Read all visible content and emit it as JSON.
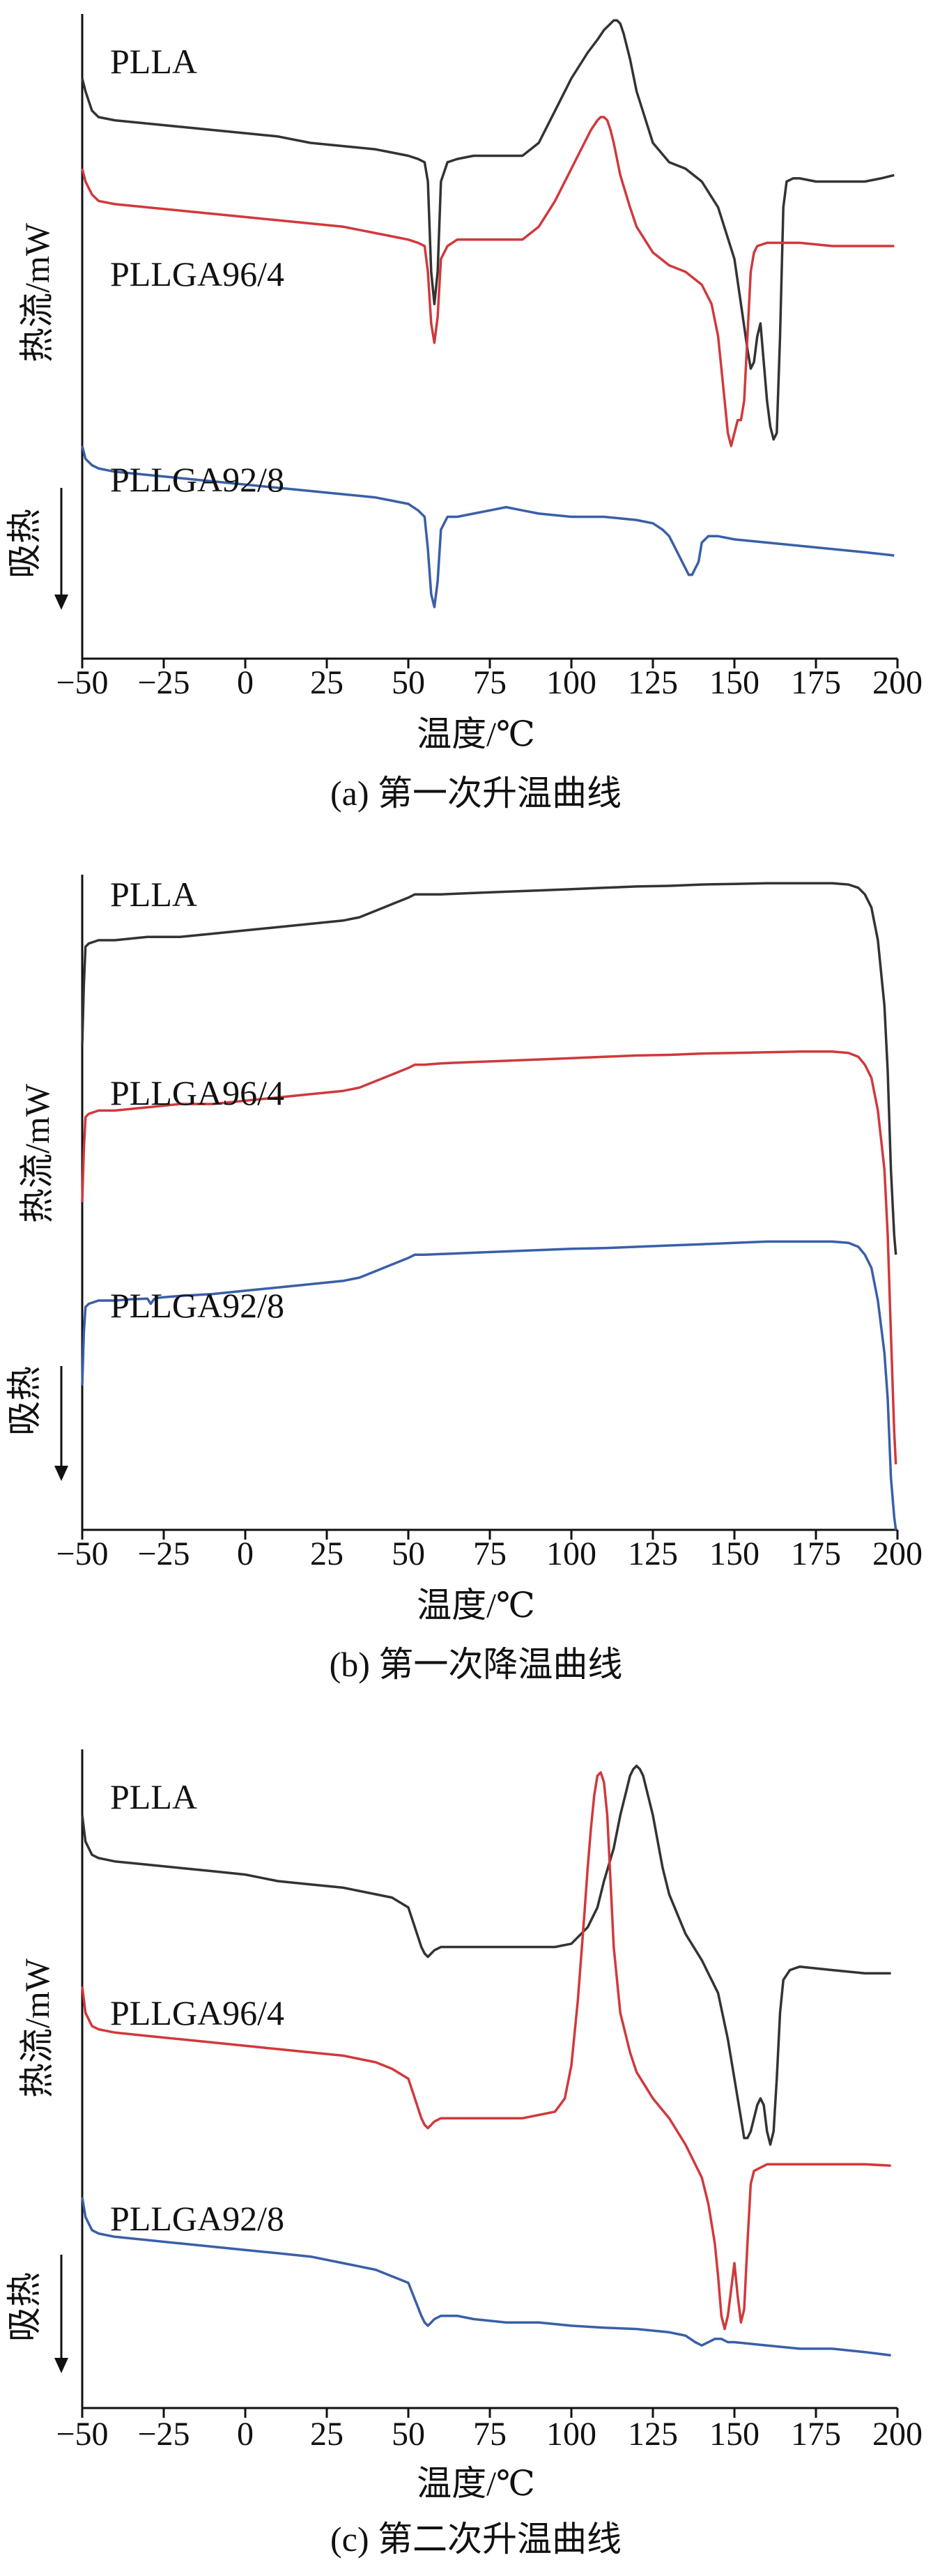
{
  "chart_data": [
    {
      "type": "line",
      "caption": "(a) 第一次升温曲线",
      "xlabel": "温度/℃",
      "ylabel": "热流/mW",
      "endo_label": "吸热",
      "xlim": [
        -50,
        200
      ],
      "xticks": [
        -50,
        -25,
        0,
        25,
        50,
        75,
        100,
        125,
        150,
        175,
        200
      ],
      "series": [
        {
          "name": "PLLA",
          "color": "#333333",
          "x": [
            -50,
            -49,
            -47,
            -45,
            -40,
            -30,
            -20,
            -10,
            0,
            10,
            20,
            30,
            40,
            45,
            50,
            53,
            55,
            56,
            57,
            58,
            59,
            60,
            62,
            65,
            70,
            75,
            80,
            85,
            90,
            95,
            100,
            105,
            108,
            110,
            112,
            113,
            114,
            115,
            116,
            118,
            120,
            125,
            130,
            135,
            140,
            145,
            150,
            152,
            154,
            155,
            156,
            157,
            158,
            159,
            160,
            161,
            162,
            163,
            164,
            165,
            166,
            168,
            170,
            175,
            180,
            185,
            190,
            195,
            199
          ],
          "y": [
            0.9,
            0.88,
            0.85,
            0.84,
            0.835,
            0.83,
            0.825,
            0.82,
            0.815,
            0.81,
            0.8,
            0.795,
            0.79,
            0.785,
            0.78,
            0.775,
            0.77,
            0.74,
            0.6,
            0.55,
            0.6,
            0.74,
            0.77,
            0.775,
            0.78,
            0.78,
            0.78,
            0.78,
            0.8,
            0.85,
            0.9,
            0.94,
            0.96,
            0.975,
            0.985,
            0.99,
            0.99,
            0.985,
            0.97,
            0.93,
            0.88,
            0.8,
            0.77,
            0.76,
            0.74,
            0.7,
            0.62,
            0.55,
            0.48,
            0.45,
            0.46,
            0.5,
            0.52,
            0.46,
            0.4,
            0.36,
            0.34,
            0.35,
            0.5,
            0.7,
            0.74,
            0.745,
            0.745,
            0.74,
            0.74,
            0.74,
            0.74,
            0.745,
            0.75
          ]
        },
        {
          "name": "PLLGA96/4",
          "color": "#d0393c",
          "x": [
            -50,
            -49,
            -47,
            -45,
            -40,
            -30,
            -20,
            -10,
            0,
            10,
            20,
            30,
            40,
            45,
            50,
            53,
            55,
            56,
            57,
            58,
            59,
            60,
            62,
            65,
            70,
            75,
            80,
            85,
            90,
            95,
            100,
            104,
            106,
            108,
            109,
            110,
            111,
            112,
            113,
            115,
            118,
            120,
            125,
            130,
            135,
            140,
            143,
            145,
            146,
            147,
            148,
            149,
            150,
            151,
            152,
            153,
            154,
            155,
            156,
            157,
            160,
            165,
            170,
            180,
            190,
            199
          ],
          "y": [
            0.76,
            0.74,
            0.72,
            0.71,
            0.705,
            0.7,
            0.695,
            0.69,
            0.685,
            0.68,
            0.675,
            0.67,
            0.66,
            0.655,
            0.65,
            0.645,
            0.64,
            0.6,
            0.52,
            0.49,
            0.53,
            0.62,
            0.64,
            0.65,
            0.65,
            0.65,
            0.65,
            0.65,
            0.67,
            0.71,
            0.76,
            0.8,
            0.82,
            0.835,
            0.84,
            0.84,
            0.835,
            0.82,
            0.8,
            0.75,
            0.7,
            0.67,
            0.63,
            0.61,
            0.6,
            0.58,
            0.55,
            0.5,
            0.45,
            0.4,
            0.35,
            0.33,
            0.35,
            0.37,
            0.37,
            0.4,
            0.5,
            0.6,
            0.63,
            0.64,
            0.645,
            0.645,
            0.645,
            0.64,
            0.64,
            0.64
          ]
        },
        {
          "name": "PLLGA92/8",
          "color": "#3a5fa8",
          "x": [
            -50,
            -49,
            -47,
            -45,
            -40,
            -30,
            -20,
            -10,
            0,
            10,
            20,
            30,
            40,
            45,
            50,
            53,
            55,
            56,
            57,
            58,
            59,
            60,
            62,
            65,
            70,
            75,
            80,
            85,
            90,
            100,
            110,
            120,
            125,
            128,
            130,
            132,
            134,
            135,
            136,
            137,
            138,
            139,
            140,
            142,
            145,
            150,
            160,
            170,
            180,
            190,
            199
          ],
          "y": [
            0.33,
            0.31,
            0.3,
            0.295,
            0.29,
            0.285,
            0.28,
            0.275,
            0.27,
            0.265,
            0.26,
            0.255,
            0.25,
            0.245,
            0.24,
            0.23,
            0.22,
            0.17,
            0.1,
            0.08,
            0.12,
            0.2,
            0.22,
            0.22,
            0.225,
            0.23,
            0.235,
            0.23,
            0.225,
            0.22,
            0.22,
            0.215,
            0.21,
            0.2,
            0.19,
            0.17,
            0.15,
            0.14,
            0.13,
            0.13,
            0.14,
            0.15,
            0.18,
            0.19,
            0.19,
            0.185,
            0.18,
            0.175,
            0.17,
            0.165,
            0.16
          ]
        }
      ]
    },
    {
      "type": "line",
      "caption": "(b) 第一次降温曲线",
      "xlabel": "温度/℃",
      "ylabel": "热流/mW",
      "endo_label": "吸热",
      "xlim": [
        -50,
        200
      ],
      "xticks": [
        -50,
        -25,
        0,
        25,
        50,
        75,
        100,
        125,
        150,
        175,
        200
      ],
      "series": [
        {
          "name": "PLLA",
          "color": "#333333",
          "x": [
            -50,
            -49.5,
            -49,
            -48,
            -45,
            -40,
            -30,
            -20,
            -10,
            0,
            10,
            20,
            30,
            35,
            40,
            45,
            50,
            52,
            55,
            60,
            70,
            80,
            90,
            100,
            110,
            120,
            130,
            140,
            150,
            160,
            170,
            180,
            185,
            188,
            190,
            192,
            194,
            196,
            197,
            198,
            199,
            199.5
          ],
          "y": [
            0.74,
            0.83,
            0.89,
            0.895,
            0.9,
            0.9,
            0.905,
            0.905,
            0.91,
            0.915,
            0.92,
            0.925,
            0.93,
            0.935,
            0.945,
            0.955,
            0.965,
            0.97,
            0.97,
            0.97,
            0.972,
            0.974,
            0.976,
            0.978,
            0.98,
            0.982,
            0.983,
            0.985,
            0.986,
            0.987,
            0.987,
            0.987,
            0.985,
            0.98,
            0.97,
            0.95,
            0.9,
            0.8,
            0.7,
            0.55,
            0.45,
            0.42
          ]
        },
        {
          "name": "PLLGA96/4",
          "color": "#d0393c",
          "x": [
            -50,
            -49.5,
            -49,
            -48,
            -45,
            -40,
            -30,
            -20,
            -10,
            0,
            10,
            20,
            30,
            35,
            40,
            45,
            50,
            52,
            55,
            60,
            70,
            80,
            90,
            100,
            110,
            120,
            130,
            140,
            150,
            160,
            170,
            180,
            185,
            188,
            190,
            192,
            194,
            196,
            197,
            198,
            199,
            199.5
          ],
          "y": [
            0.5,
            0.58,
            0.63,
            0.635,
            0.64,
            0.64,
            0.645,
            0.65,
            0.65,
            0.655,
            0.66,
            0.665,
            0.67,
            0.675,
            0.685,
            0.695,
            0.705,
            0.71,
            0.71,
            0.712,
            0.714,
            0.716,
            0.718,
            0.72,
            0.722,
            0.724,
            0.725,
            0.727,
            0.728,
            0.729,
            0.73,
            0.73,
            0.728,
            0.722,
            0.71,
            0.69,
            0.64,
            0.55,
            0.45,
            0.3,
            0.15,
            0.1
          ]
        },
        {
          "name": "PLLGA92/8",
          "color": "#3a5fa8",
          "x": [
            -50,
            -49.5,
            -49,
            -48,
            -45,
            -40,
            -35,
            -30,
            -29,
            -28,
            -27,
            -25,
            -20,
            -10,
            0,
            10,
            20,
            30,
            35,
            40,
            45,
            50,
            52,
            55,
            60,
            70,
            80,
            90,
            100,
            110,
            120,
            130,
            140,
            150,
            160,
            170,
            180,
            185,
            188,
            190,
            192,
            194,
            196,
            197,
            198,
            199,
            199.5
          ],
          "y": [
            0.22,
            0.3,
            0.34,
            0.345,
            0.35,
            0.35,
            0.352,
            0.353,
            0.345,
            0.352,
            0.354,
            0.355,
            0.357,
            0.36,
            0.365,
            0.37,
            0.375,
            0.38,
            0.385,
            0.395,
            0.405,
            0.415,
            0.42,
            0.42,
            0.421,
            0.423,
            0.425,
            0.427,
            0.429,
            0.43,
            0.432,
            0.434,
            0.436,
            0.438,
            0.44,
            0.44,
            0.44,
            0.438,
            0.432,
            0.42,
            0.4,
            0.35,
            0.27,
            0.2,
            0.08,
            0.02,
            0.0
          ]
        }
      ]
    },
    {
      "type": "line",
      "caption": "(c) 第二次升温曲线",
      "xlabel": "温度/℃",
      "ylabel": "热流/mW",
      "endo_label": "吸热",
      "xlim": [
        -50,
        200
      ],
      "xticks": [
        -50,
        -25,
        0,
        25,
        50,
        75,
        100,
        125,
        150,
        175,
        200
      ],
      "series": [
        {
          "name": "PLLA",
          "color": "#333333",
          "x": [
            -50,
            -49,
            -47,
            -45,
            -40,
            -30,
            -20,
            -10,
            0,
            10,
            20,
            30,
            40,
            45,
            50,
            52,
            54,
            55,
            56,
            57,
            58,
            60,
            65,
            70,
            75,
            80,
            85,
            90,
            95,
            100,
            105,
            108,
            110,
            113,
            115,
            117,
            118,
            119,
            120,
            121,
            122,
            125,
            128,
            130,
            135,
            140,
            145,
            148,
            150,
            152,
            153,
            154,
            155,
            156,
            157,
            158,
            159,
            160,
            161,
            162,
            163,
            164,
            165,
            167,
            170,
            180,
            190,
            198
          ],
          "y": [
            0.9,
            0.86,
            0.84,
            0.835,
            0.83,
            0.825,
            0.82,
            0.815,
            0.81,
            0.8,
            0.795,
            0.79,
            0.78,
            0.775,
            0.76,
            0.73,
            0.7,
            0.69,
            0.685,
            0.69,
            0.695,
            0.7,
            0.7,
            0.7,
            0.7,
            0.7,
            0.7,
            0.7,
            0.7,
            0.705,
            0.73,
            0.76,
            0.8,
            0.85,
            0.9,
            0.94,
            0.96,
            0.97,
            0.975,
            0.97,
            0.96,
            0.9,
            0.82,
            0.78,
            0.72,
            0.68,
            0.63,
            0.56,
            0.5,
            0.44,
            0.41,
            0.41,
            0.42,
            0.44,
            0.46,
            0.47,
            0.46,
            0.42,
            0.4,
            0.42,
            0.5,
            0.6,
            0.65,
            0.665,
            0.67,
            0.665,
            0.66,
            0.66
          ]
        },
        {
          "name": "PLLGA96/4",
          "color": "#d0393c",
          "x": [
            -50,
            -49,
            -47,
            -45,
            -40,
            -30,
            -20,
            -10,
            0,
            10,
            20,
            30,
            40,
            45,
            50,
            52,
            54,
            55,
            56,
            57,
            58,
            60,
            65,
            70,
            75,
            80,
            85,
            90,
            95,
            98,
            100,
            102,
            104,
            105,
            106,
            107,
            108,
            109,
            110,
            111,
            112,
            113,
            115,
            118,
            120,
            125,
            130,
            135,
            140,
            142,
            144,
            145,
            146,
            147,
            148,
            149,
            150,
            151,
            152,
            153,
            154,
            155,
            156,
            158,
            160,
            170,
            180,
            190,
            198
          ],
          "y": [
            0.64,
            0.6,
            0.58,
            0.575,
            0.57,
            0.565,
            0.56,
            0.555,
            0.55,
            0.545,
            0.54,
            0.535,
            0.525,
            0.515,
            0.5,
            0.47,
            0.44,
            0.43,
            0.425,
            0.43,
            0.435,
            0.44,
            0.44,
            0.44,
            0.44,
            0.44,
            0.44,
            0.445,
            0.45,
            0.47,
            0.52,
            0.62,
            0.75,
            0.82,
            0.88,
            0.93,
            0.96,
            0.965,
            0.95,
            0.9,
            0.8,
            0.7,
            0.6,
            0.54,
            0.51,
            0.47,
            0.44,
            0.4,
            0.35,
            0.31,
            0.25,
            0.2,
            0.14,
            0.12,
            0.14,
            0.18,
            0.22,
            0.17,
            0.13,
            0.15,
            0.25,
            0.34,
            0.36,
            0.365,
            0.37,
            0.37,
            0.37,
            0.37,
            0.368
          ]
        },
        {
          "name": "PLLGA92/8",
          "color": "#3a5fa8",
          "x": [
            -50,
            -49,
            -47,
            -45,
            -40,
            -30,
            -20,
            -10,
            0,
            10,
            20,
            30,
            40,
            45,
            50,
            52,
            54,
            55,
            56,
            57,
            58,
            60,
            65,
            70,
            80,
            90,
            100,
            110,
            120,
            130,
            135,
            138,
            140,
            142,
            144,
            146,
            148,
            150,
            160,
            170,
            180,
            190,
            198
          ],
          "y": [
            0.32,
            0.29,
            0.27,
            0.265,
            0.26,
            0.255,
            0.25,
            0.245,
            0.24,
            0.235,
            0.23,
            0.22,
            0.21,
            0.2,
            0.19,
            0.165,
            0.14,
            0.13,
            0.125,
            0.13,
            0.135,
            0.14,
            0.14,
            0.135,
            0.13,
            0.13,
            0.125,
            0.122,
            0.12,
            0.115,
            0.11,
            0.1,
            0.095,
            0.1,
            0.105,
            0.105,
            0.1,
            0.1,
            0.095,
            0.09,
            0.09,
            0.085,
            0.08
          ]
        }
      ]
    }
  ]
}
